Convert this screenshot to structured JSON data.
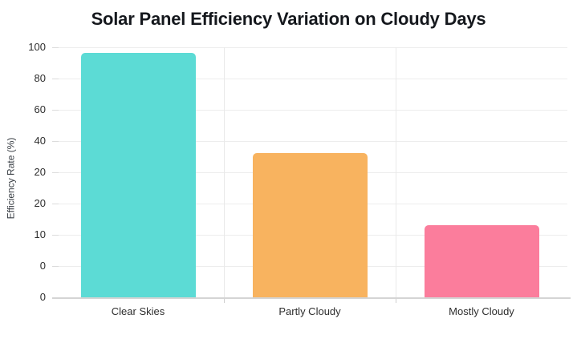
{
  "chart_data": {
    "type": "bar",
    "title": "Solar Panel Efficiency Variation on Cloudy Days",
    "ylabel": "Efficiency Rate (%)",
    "xlabel": "",
    "categories": [
      "Clear Skies",
      "Partly Cloudy",
      "Mostly Cloudy"
    ],
    "values": [
      96.5,
      32,
      12.5
    ],
    "ylim": [
      0,
      100
    ],
    "y_tick_labels_as_shown": [
      "100",
      "80",
      "60",
      "40",
      "20",
      "20",
      "10",
      "0",
      "0"
    ],
    "grid": true,
    "legend": false,
    "bar_colors": [
      "#5CDBD5",
      "#F8B35F",
      "#FB7D9C"
    ],
    "bar_height_fractions": [
      0.978,
      0.577,
      0.288
    ]
  },
  "colors": {
    "background": "#ffffff",
    "title_text": "#15181d",
    "tick_text": "#2e2e2e",
    "gridline": "#ededed",
    "axis_line": "#d4d4d4"
  }
}
